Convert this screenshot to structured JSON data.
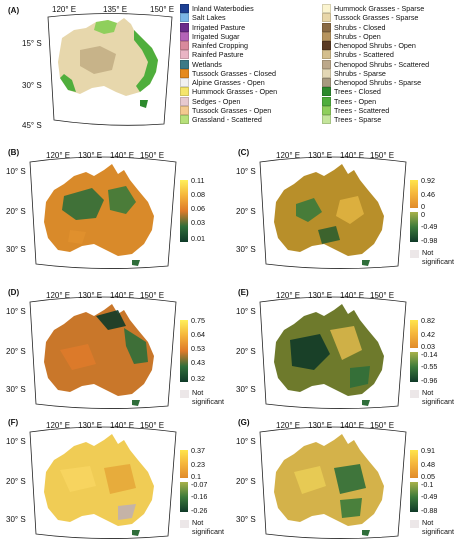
{
  "panel_a": {
    "label": "(A)",
    "lon_ticks": [
      "120° E",
      "135° E",
      "150° E"
    ],
    "lat_ticks": [
      "15° S",
      "30° S",
      "45° S"
    ]
  },
  "panel_b": {
    "label": "(B)",
    "lon_ticks": [
      "120° E",
      "130° E",
      "140° E",
      "150° E"
    ],
    "lat_ticks": [
      "10° S",
      "20° S",
      "30° S"
    ],
    "legend": [
      "0.11",
      "0.08",
      "0.06",
      "0.03",
      "0.01"
    ]
  },
  "panel_c": {
    "label": "(C)",
    "lon_ticks": [
      "120° E",
      "130° E",
      "140° E",
      "150° E"
    ],
    "lat_ticks": [
      "10° S",
      "20° S",
      "30° S"
    ],
    "legend_pos": [
      "0.92",
      "0.46",
      "0"
    ],
    "legend_neg": [
      "0",
      "-0.49",
      "-0.98"
    ],
    "ns": "Not significant"
  },
  "panel_d": {
    "label": "(D)",
    "lon_ticks": [
      "120° E",
      "130° E",
      "140° E",
      "150° E"
    ],
    "lat_ticks": [
      "10° S",
      "20° S",
      "30° S"
    ],
    "legend": [
      "0.75",
      "0.64",
      "0.53",
      "0.43",
      "0.32"
    ],
    "ns": "Not significant"
  },
  "panel_e": {
    "label": "(E)",
    "lon_ticks": [
      "120° E",
      "130° E",
      "140° E",
      "150° E"
    ],
    "lat_ticks": [
      "10° S",
      "20° S",
      "30° S"
    ],
    "legend_pos": [
      "0.82",
      "0.42",
      "0.03"
    ],
    "legend_neg": [
      "-0.14",
      "-0.55",
      "-0.96"
    ],
    "ns": "Not significant"
  },
  "panel_f": {
    "label": "(F)",
    "lon_ticks": [
      "120° E",
      "130° E",
      "140° E",
      "150° E"
    ],
    "lat_ticks": [
      "10° S",
      "20° S",
      "30° S"
    ],
    "legend_pos": [
      "0.37",
      "0.23",
      "0.1"
    ],
    "legend_neg": [
      "-0.07",
      "-0.16",
      "-0.26"
    ],
    "ns": "Not significant"
  },
  "panel_g": {
    "label": "(G)",
    "lon_ticks": [
      "120° E",
      "130° E",
      "140° E",
      "150° E"
    ],
    "lat_ticks": [
      "10° S",
      "20° S",
      "30° S"
    ],
    "legend_pos": [
      "0.91",
      "0.48",
      "0.05"
    ],
    "legend_neg": [
      "-0.1",
      "-0.49",
      "-0.88"
    ],
    "ns": "Not significant"
  },
  "vegetation_legend": [
    {
      "label": "Inland Waterbodies",
      "color": "#1c3f93"
    },
    {
      "label": "Salt Lakes",
      "color": "#7ab6e6"
    },
    {
      "label": "Irrigated Pasture",
      "color": "#6a2a8a"
    },
    {
      "label": "Irrigated Sugar",
      "color": "#b463b8"
    },
    {
      "label": "Rainfed Cropping",
      "color": "#d98a9c"
    },
    {
      "label": "Rainfed Pasture",
      "color": "#e9b4c4"
    },
    {
      "label": "Wetlands",
      "color": "#3c7a86"
    },
    {
      "label": "Tussock Grasses - Closed",
      "color": "#e58a1e"
    },
    {
      "label": "Alpine Grasses - Open",
      "color": "#f1f1f1"
    },
    {
      "label": "Hummock Grasses - Open",
      "color": "#f5e56b"
    },
    {
      "label": "Sedges - Open",
      "color": "#e7c9cf"
    },
    {
      "label": "Tussock Grasses - Open",
      "color": "#f3c98f"
    },
    {
      "label": "Grassland - Scattered",
      "color": "#b7e07a"
    },
    {
      "label": "Hummock Grasses - Sparse",
      "color": "#fbf4cf"
    },
    {
      "label": "Tussock Grasses - Sparse",
      "color": "#e8d6a8"
    },
    {
      "label": "Shrubs - Closed",
      "color": "#8a6a43"
    },
    {
      "label": "Shrubs - Open",
      "color": "#b7945e"
    },
    {
      "label": "Chenopod Shrubs - Open",
      "color": "#5a3a22"
    },
    {
      "label": "Shrubs - Scattered",
      "color": "#d4bf8e"
    },
    {
      "label": "Chenopod Shrubs - Scattered",
      "color": "#bca88a"
    },
    {
      "label": "Shrubs - Sparse",
      "color": "#e3d7b5"
    },
    {
      "label": "Chenopod Shrubs - Sparse",
      "color": "#a89a80"
    },
    {
      "label": "Trees - Closed",
      "color": "#2d8a2d"
    },
    {
      "label": "Trees - Open",
      "color": "#4fae3c"
    },
    {
      "label": "Trees - Scattered",
      "color": "#8fcf5c"
    },
    {
      "label": "Trees - Sparse",
      "color": "#c4e59b"
    }
  ]
}
